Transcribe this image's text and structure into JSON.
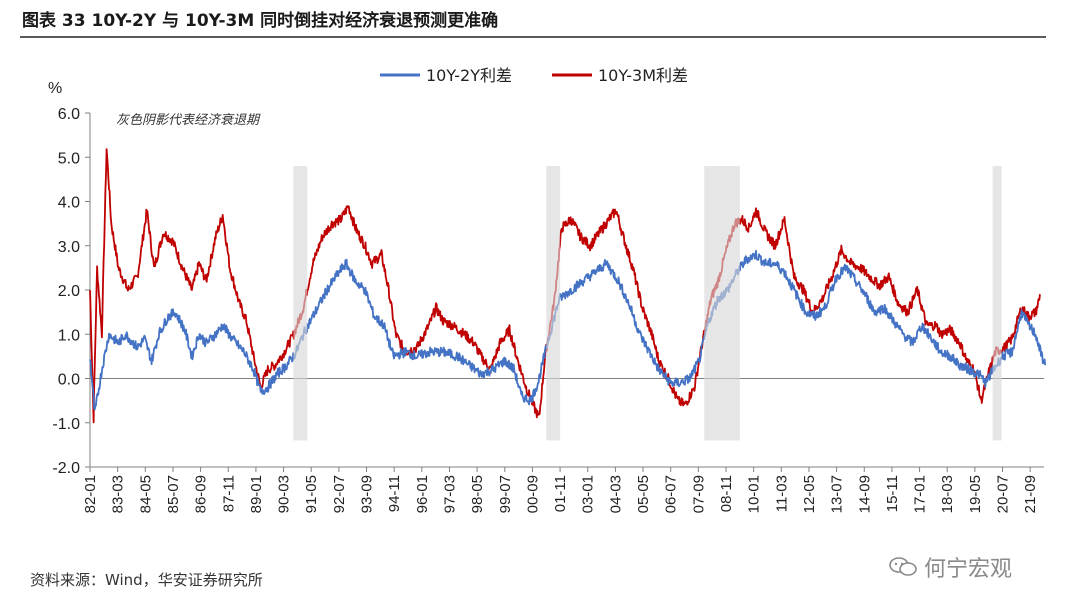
{
  "title": "图表 33 10Y-2Y 与 10Y-3M 同时倒挂对经济衰退预测更准确",
  "source": "资料来源：Wind，华安证券研究所",
  "watermark": "何宁宏观",
  "colors": {
    "series_a": "#4472c4",
    "series_b": "#c00000",
    "shade": "#d9d6d6",
    "axis": "#808080"
  },
  "chart_data": {
    "type": "line",
    "ylabel": "%",
    "ylim": [
      -2.0,
      6.0
    ],
    "y_ticks": [
      "6.0",
      "5.0",
      "4.0",
      "3.0",
      "2.0",
      "1.0",
      "0.0",
      "-1.0",
      "-2.0"
    ],
    "x_labels": [
      "82-01",
      "83-03",
      "84-05",
      "85-07",
      "86-09",
      "87-11",
      "89-01",
      "90-03",
      "91-05",
      "92-07",
      "93-09",
      "94-11",
      "96-01",
      "97-03",
      "98-05",
      "99-07",
      "00-09",
      "01-11",
      "03-01",
      "04-03",
      "05-05",
      "06-07",
      "07-09",
      "08-11",
      "10-01",
      "11-03",
      "12-05",
      "13-07",
      "14-09",
      "15-11",
      "17-01",
      "18-03",
      "19-05",
      "20-07",
      "21-09"
    ],
    "annotation": "灰色阴影代表经济衰退期",
    "recessions": [
      [
        "90-08",
        "91-03"
      ],
      [
        "01-04",
        "01-11"
      ],
      [
        "07-12",
        "09-06"
      ],
      [
        "20-02",
        "20-04"
      ]
    ],
    "series": [
      {
        "name": "10Y-2Y利差",
        "points": [
          [
            1982.0,
            0.5
          ],
          [
            1982.2,
            -0.8
          ],
          [
            1982.5,
            0.2
          ],
          [
            1982.8,
            1.0
          ],
          [
            1983.2,
            0.8
          ],
          [
            1983.5,
            1.0
          ],
          [
            1984.0,
            0.7
          ],
          [
            1984.3,
            0.9
          ],
          [
            1984.6,
            0.4
          ],
          [
            1984.9,
            1.0
          ],
          [
            1985.3,
            1.4
          ],
          [
            1985.6,
            1.5
          ],
          [
            1986.0,
            1.1
          ],
          [
            1986.3,
            0.5
          ],
          [
            1986.6,
            1.0
          ],
          [
            1986.9,
            0.8
          ],
          [
            1987.3,
            1.0
          ],
          [
            1987.6,
            1.2
          ],
          [
            1988.0,
            0.9
          ],
          [
            1988.5,
            0.6
          ],
          [
            1988.9,
            0.2
          ],
          [
            1989.2,
            -0.3
          ],
          [
            1989.5,
            -0.2
          ],
          [
            1989.9,
            0.1
          ],
          [
            1990.3,
            0.3
          ],
          [
            1990.7,
            0.6
          ],
          [
            1991.0,
            1.0
          ],
          [
            1991.5,
            1.5
          ],
          [
            1992.0,
            2.0
          ],
          [
            1992.5,
            2.4
          ],
          [
            1992.8,
            2.6
          ],
          [
            1993.2,
            2.2
          ],
          [
            1993.6,
            2.0
          ],
          [
            1994.0,
            1.4
          ],
          [
            1994.4,
            1.2
          ],
          [
            1994.8,
            0.5
          ],
          [
            1995.3,
            0.6
          ],
          [
            1995.8,
            0.5
          ],
          [
            1996.3,
            0.6
          ],
          [
            1996.9,
            0.6
          ],
          [
            1997.5,
            0.5
          ],
          [
            1998.0,
            0.3
          ],
          [
            1998.5,
            0.1
          ],
          [
            1999.0,
            0.2
          ],
          [
            1999.5,
            0.4
          ],
          [
            1999.9,
            0.2
          ],
          [
            2000.2,
            -0.4
          ],
          [
            2000.6,
            -0.5
          ],
          [
            2000.9,
            -0.1
          ],
          [
            2001.3,
            0.8
          ],
          [
            2001.8,
            1.8
          ],
          [
            2002.3,
            2.0
          ],
          [
            2002.8,
            2.2
          ],
          [
            2003.3,
            2.4
          ],
          [
            2003.8,
            2.6
          ],
          [
            2004.3,
            2.2
          ],
          [
            2004.8,
            1.6
          ],
          [
            2005.2,
            1.0
          ],
          [
            2005.6,
            0.6
          ],
          [
            2006.0,
            0.2
          ],
          [
            2006.5,
            -0.1
          ],
          [
            2006.9,
            -0.1
          ],
          [
            2007.3,
            0.0
          ],
          [
            2007.7,
            0.4
          ],
          [
            2008.1,
            1.3
          ],
          [
            2008.5,
            1.8
          ],
          [
            2008.9,
            2.0
          ],
          [
            2009.3,
            2.4
          ],
          [
            2009.7,
            2.7
          ],
          [
            2010.1,
            2.8
          ],
          [
            2010.5,
            2.6
          ],
          [
            2010.9,
            2.6
          ],
          [
            2011.3,
            2.4
          ],
          [
            2011.7,
            2.0
          ],
          [
            2012.2,
            1.5
          ],
          [
            2012.6,
            1.4
          ],
          [
            2013.0,
            1.6
          ],
          [
            2013.5,
            2.3
          ],
          [
            2013.9,
            2.5
          ],
          [
            2014.3,
            2.2
          ],
          [
            2014.7,
            1.9
          ],
          [
            2015.1,
            1.5
          ],
          [
            2015.5,
            1.6
          ],
          [
            2015.9,
            1.3
          ],
          [
            2016.3,
            1.0
          ],
          [
            2016.7,
            0.8
          ],
          [
            2017.1,
            1.2
          ],
          [
            2017.5,
            0.9
          ],
          [
            2017.9,
            0.6
          ],
          [
            2018.3,
            0.5
          ],
          [
            2018.7,
            0.3
          ],
          [
            2019.1,
            0.2
          ],
          [
            2019.5,
            0.1
          ],
          [
            2019.8,
            -0.1
          ],
          [
            2020.1,
            0.2
          ],
          [
            2020.5,
            0.5
          ],
          [
            2020.9,
            0.6
          ],
          [
            2021.3,
            1.5
          ],
          [
            2021.6,
            1.2
          ],
          [
            2021.9,
            1.0
          ],
          [
            2022.1,
            0.6
          ],
          [
            2022.3,
            0.3
          ]
        ]
      },
      {
        "name": "10Y-3M利差",
        "points": [
          [
            1982.0,
            2.0
          ],
          [
            1982.15,
            -0.9
          ],
          [
            1982.3,
            2.5
          ],
          [
            1982.5,
            1.0
          ],
          [
            1982.7,
            5.2
          ],
          [
            1982.9,
            3.5
          ],
          [
            1983.2,
            2.5
          ],
          [
            1983.6,
            2.0
          ],
          [
            1984.0,
            2.3
          ],
          [
            1984.4,
            3.8
          ],
          [
            1984.7,
            2.5
          ],
          [
            1985.1,
            3.3
          ],
          [
            1985.5,
            3.1
          ],
          [
            1985.9,
            2.5
          ],
          [
            1986.3,
            2.0
          ],
          [
            1986.6,
            2.6
          ],
          [
            1986.9,
            2.2
          ],
          [
            1987.3,
            3.2
          ],
          [
            1987.6,
            3.7
          ],
          [
            1987.9,
            2.5
          ],
          [
            1988.3,
            1.7
          ],
          [
            1988.6,
            1.3
          ],
          [
            1988.9,
            0.5
          ],
          [
            1989.2,
            -0.2
          ],
          [
            1989.5,
            0.2
          ],
          [
            1989.8,
            0.3
          ],
          [
            1990.2,
            0.6
          ],
          [
            1990.6,
            1.0
          ],
          [
            1991.0,
            1.6
          ],
          [
            1991.4,
            2.6
          ],
          [
            1991.8,
            3.2
          ],
          [
            1992.2,
            3.5
          ],
          [
            1992.6,
            3.6
          ],
          [
            1992.9,
            3.9
          ],
          [
            1993.2,
            3.4
          ],
          [
            1993.6,
            3.0
          ],
          [
            1993.9,
            2.6
          ],
          [
            1994.3,
            2.8
          ],
          [
            1994.6,
            2.0
          ],
          [
            1994.9,
            1.0
          ],
          [
            1995.3,
            0.6
          ],
          [
            1995.8,
            0.7
          ],
          [
            1996.3,
            1.2
          ],
          [
            1996.6,
            1.6
          ],
          [
            1996.9,
            1.3
          ],
          [
            1997.3,
            1.2
          ],
          [
            1997.8,
            1.0
          ],
          [
            1998.2,
            0.8
          ],
          [
            1998.5,
            0.5
          ],
          [
            1998.9,
            0.2
          ],
          [
            1999.3,
            0.8
          ],
          [
            1999.7,
            1.1
          ],
          [
            2000.0,
            0.5
          ],
          [
            2000.4,
            -0.2
          ],
          [
            2000.7,
            -0.6
          ],
          [
            2000.95,
            -0.9
          ],
          [
            2001.2,
            0.5
          ],
          [
            2001.6,
            1.8
          ],
          [
            2001.9,
            3.4
          ],
          [
            2002.3,
            3.6
          ],
          [
            2002.7,
            3.2
          ],
          [
            2003.1,
            3.0
          ],
          [
            2003.5,
            3.3
          ],
          [
            2003.9,
            3.6
          ],
          [
            2004.2,
            3.8
          ],
          [
            2004.5,
            3.2
          ],
          [
            2004.9,
            2.5
          ],
          [
            2005.3,
            1.6
          ],
          [
            2005.7,
            1.0
          ],
          [
            2006.0,
            0.4
          ],
          [
            2006.4,
            0.0
          ],
          [
            2006.8,
            -0.5
          ],
          [
            2007.1,
            -0.6
          ],
          [
            2007.5,
            -0.2
          ],
          [
            2007.8,
            0.7
          ],
          [
            2008.2,
            1.8
          ],
          [
            2008.5,
            2.2
          ],
          [
            2008.9,
            3.0
          ],
          [
            2009.2,
            3.5
          ],
          [
            2009.5,
            3.6
          ],
          [
            2009.8,
            3.4
          ],
          [
            2010.1,
            3.8
          ],
          [
            2010.5,
            3.3
          ],
          [
            2010.9,
            3.0
          ],
          [
            2011.3,
            3.6
          ],
          [
            2011.7,
            2.3
          ],
          [
            2012.1,
            2.0
          ],
          [
            2012.5,
            1.5
          ],
          [
            2012.9,
            1.8
          ],
          [
            2013.3,
            2.3
          ],
          [
            2013.7,
            2.9
          ],
          [
            2014.1,
            2.6
          ],
          [
            2014.5,
            2.5
          ],
          [
            2014.9,
            2.3
          ],
          [
            2015.3,
            2.1
          ],
          [
            2015.7,
            2.3
          ],
          [
            2016.1,
            1.7
          ],
          [
            2016.5,
            1.5
          ],
          [
            2016.9,
            2.0
          ],
          [
            2017.3,
            1.2
          ],
          [
            2017.7,
            1.2
          ],
          [
            2017.9,
            1.0
          ],
          [
            2018.3,
            1.1
          ],
          [
            2018.7,
            0.8
          ],
          [
            2019.0,
            0.4
          ],
          [
            2019.3,
            0.2
          ],
          [
            2019.6,
            -0.5
          ],
          [
            2019.9,
            0.1
          ],
          [
            2020.2,
            0.6
          ],
          [
            2020.6,
            0.7
          ],
          [
            2020.9,
            0.9
          ],
          [
            2021.3,
            1.6
          ],
          [
            2021.6,
            1.4
          ],
          [
            2021.9,
            1.5
          ],
          [
            2022.1,
            1.9
          ]
        ]
      }
    ]
  }
}
